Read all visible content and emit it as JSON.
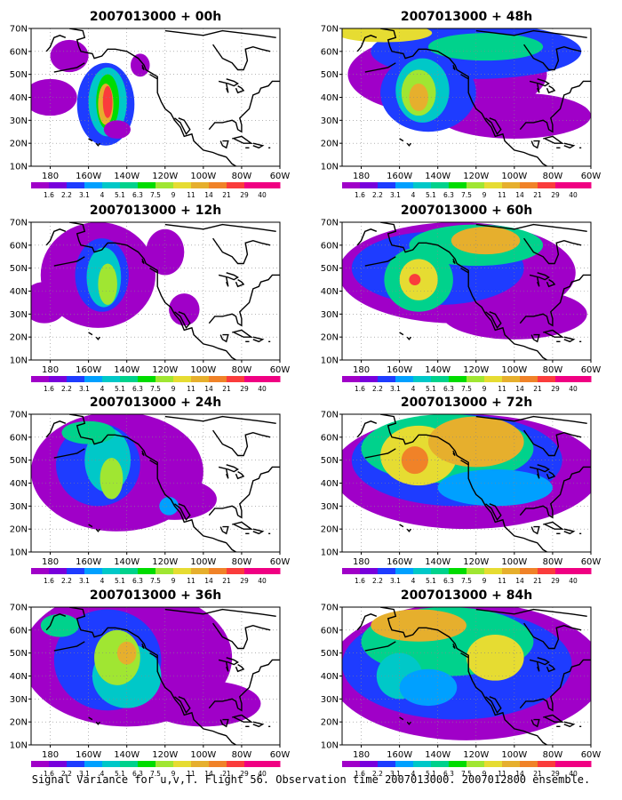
{
  "footer": "Signal Variance for u,v,T. Flight 56. Observation time 2007013000. 2007012800 ensemble.",
  "map": {
    "lat_ticks": [
      "70N",
      "60N",
      "50N",
      "40N",
      "30N",
      "20N",
      "10N"
    ],
    "lon_ticks": [
      "180",
      "160W",
      "140W",
      "120W",
      "100W",
      "80W",
      "60W"
    ],
    "lon_range": [
      -190,
      -60
    ],
    "lat_range": [
      10,
      70
    ]
  },
  "colorbar": {
    "labels": [
      "1.6",
      "2.2",
      "3.1",
      "4",
      "5.1",
      "6.3",
      "7.5",
      "9",
      "11",
      "14",
      "21",
      "29",
      "40"
    ],
    "colors": [
      "#a000c8",
      "#7800dc",
      "#1e3cff",
      "#00a0ff",
      "#00c8c8",
      "#00d28c",
      "#00dc00",
      "#a0e632",
      "#e6dc32",
      "#e6af2d",
      "#f08228",
      "#fa3c3c",
      "#f00082"
    ]
  },
  "panels": [
    {
      "id": "00h",
      "title": "2007013000 + 00h",
      "blobs": [
        {
          "lon": -151,
          "lat": 37,
          "rx": 15,
          "ry": 18,
          "level": 2
        },
        {
          "lon": -150,
          "lat": 38,
          "rx": 10,
          "ry": 15,
          "level": 4
        },
        {
          "lon": -150,
          "lat": 38,
          "rx": 6,
          "ry": 12,
          "level": 6
        },
        {
          "lon": -151,
          "lat": 37,
          "rx": 4,
          "ry": 9,
          "level": 9
        },
        {
          "lon": -150,
          "lat": 38,
          "rx": 2.5,
          "ry": 7,
          "level": 11
        },
        {
          "lon": -180,
          "lat": 40,
          "rx": 14,
          "ry": 8,
          "level": 0
        },
        {
          "lon": -170,
          "lat": 58,
          "rx": 10,
          "ry": 7,
          "level": 0
        },
        {
          "lon": -133,
          "lat": 54,
          "rx": 5,
          "ry": 5,
          "level": 0
        },
        {
          "lon": -145,
          "lat": 26,
          "rx": 7,
          "ry": 4,
          "level": 0
        }
      ]
    },
    {
      "id": "48h",
      "title": "2007013000 + 48h",
      "blobs": [
        {
          "lon": -135,
          "lat": 50,
          "rx": 52,
          "ry": 18,
          "level": 0
        },
        {
          "lon": -100,
          "lat": 32,
          "rx": 40,
          "ry": 10,
          "level": 0
        },
        {
          "lon": -145,
          "lat": 42,
          "rx": 25,
          "ry": 17,
          "level": 2
        },
        {
          "lon": -120,
          "lat": 60,
          "rx": 55,
          "ry": 12,
          "level": 2
        },
        {
          "lon": -148,
          "lat": 43,
          "rx": 14,
          "ry": 14,
          "level": 4
        },
        {
          "lon": -115,
          "lat": 62,
          "rx": 30,
          "ry": 6,
          "level": 5
        },
        {
          "lon": -150,
          "lat": 42,
          "rx": 9,
          "ry": 10,
          "level": 7
        },
        {
          "lon": -150,
          "lat": 40,
          "rx": 5,
          "ry": 6,
          "level": 9
        },
        {
          "lon": -168,
          "lat": 68,
          "rx": 25,
          "ry": 4,
          "level": 8
        }
      ]
    },
    {
      "id": "12h",
      "title": "2007013000 + 12h",
      "blobs": [
        {
          "lon": -155,
          "lat": 47,
          "rx": 30,
          "ry": 23,
          "level": 0
        },
        {
          "lon": -183,
          "lat": 35,
          "rx": 12,
          "ry": 9,
          "level": 0
        },
        {
          "lon": -120,
          "lat": 57,
          "rx": 10,
          "ry": 10,
          "level": 0
        },
        {
          "lon": -110,
          "lat": 32,
          "rx": 8,
          "ry": 7,
          "level": 0
        },
        {
          "lon": -153,
          "lat": 47,
          "rx": 14,
          "ry": 16,
          "level": 2
        },
        {
          "lon": -152,
          "lat": 46,
          "rx": 9,
          "ry": 13,
          "level": 4
        },
        {
          "lon": -150,
          "lat": 43,
          "rx": 5,
          "ry": 9,
          "level": 7
        }
      ]
    },
    {
      "id": "60h",
      "title": "2007013000 + 60h",
      "blobs": [
        {
          "lon": -130,
          "lat": 48,
          "rx": 62,
          "ry": 22,
          "level": 0
        },
        {
          "lon": -100,
          "lat": 30,
          "rx": 38,
          "ry": 11,
          "level": 0
        },
        {
          "lon": -140,
          "lat": 50,
          "rx": 45,
          "ry": 16,
          "level": 2
        },
        {
          "lon": -150,
          "lat": 45,
          "rx": 18,
          "ry": 14,
          "level": 5
        },
        {
          "lon": -120,
          "lat": 60,
          "rx": 35,
          "ry": 9,
          "level": 5
        },
        {
          "lon": -150,
          "lat": 45,
          "rx": 10,
          "ry": 9,
          "level": 8
        },
        {
          "lon": -115,
          "lat": 62,
          "rx": 18,
          "ry": 6,
          "level": 9
        },
        {
          "lon": -152,
          "lat": 45,
          "rx": 3,
          "ry": 2.5,
          "level": 11
        }
      ]
    },
    {
      "id": "24h",
      "title": "2007013000 + 24h",
      "blobs": [
        {
          "lon": -145,
          "lat": 45,
          "rx": 45,
          "ry": 26,
          "level": 0
        },
        {
          "lon": -115,
          "lat": 33,
          "rx": 22,
          "ry": 9,
          "level": 0
        },
        {
          "lon": -155,
          "lat": 48,
          "rx": 22,
          "ry": 18,
          "level": 2
        },
        {
          "lon": -150,
          "lat": 50,
          "rx": 12,
          "ry": 14,
          "level": 4
        },
        {
          "lon": -160,
          "lat": 62,
          "rx": 14,
          "ry": 5,
          "level": 5
        },
        {
          "lon": -148,
          "lat": 42,
          "rx": 6,
          "ry": 9,
          "level": 7
        },
        {
          "lon": -118,
          "lat": 30,
          "rx": 5,
          "ry": 4,
          "level": 3
        }
      ]
    },
    {
      "id": "72h",
      "title": "2007013000 + 72h",
      "blobs": [
        {
          "lon": -125,
          "lat": 45,
          "rx": 70,
          "ry": 25,
          "level": 0
        },
        {
          "lon": -130,
          "lat": 50,
          "rx": 55,
          "ry": 20,
          "level": 2
        },
        {
          "lon": -135,
          "lat": 55,
          "rx": 45,
          "ry": 15,
          "level": 5
        },
        {
          "lon": -150,
          "lat": 52,
          "rx": 20,
          "ry": 13,
          "level": 8
        },
        {
          "lon": -120,
          "lat": 58,
          "rx": 25,
          "ry": 11,
          "level": 9
        },
        {
          "lon": -152,
          "lat": 50,
          "rx": 7,
          "ry": 6,
          "level": 10
        },
        {
          "lon": -110,
          "lat": 38,
          "rx": 30,
          "ry": 8,
          "level": 3
        }
      ]
    },
    {
      "id": "36h",
      "title": "2007013000 + 36h",
      "blobs": [
        {
          "lon": -140,
          "lat": 48,
          "rx": 55,
          "ry": 30,
          "level": 0
        },
        {
          "lon": -100,
          "lat": 28,
          "rx": 30,
          "ry": 10,
          "level": 0
        },
        {
          "lon": -150,
          "lat": 47,
          "rx": 28,
          "ry": 22,
          "level": 2
        },
        {
          "lon": -140,
          "lat": 40,
          "rx": 18,
          "ry": 14,
          "level": 4
        },
        {
          "lon": -145,
          "lat": 48,
          "rx": 12,
          "ry": 12,
          "level": 7
        },
        {
          "lon": -140,
          "lat": 50,
          "rx": 5,
          "ry": 5,
          "level": 9
        },
        {
          "lon": -175,
          "lat": 62,
          "rx": 10,
          "ry": 5,
          "level": 5
        }
      ]
    },
    {
      "id": "84h",
      "title": "2007013000 + 84h",
      "blobs": [
        {
          "lon": -125,
          "lat": 42,
          "rx": 72,
          "ry": 30,
          "level": 0
        },
        {
          "lon": -130,
          "lat": 45,
          "rx": 60,
          "ry": 24,
          "level": 2
        },
        {
          "lon": -135,
          "lat": 55,
          "rx": 45,
          "ry": 15,
          "level": 5
        },
        {
          "lon": -150,
          "lat": 62,
          "rx": 25,
          "ry": 7,
          "level": 9
        },
        {
          "lon": -160,
          "lat": 40,
          "rx": 12,
          "ry": 10,
          "level": 4
        },
        {
          "lon": -110,
          "lat": 48,
          "rx": 15,
          "ry": 10,
          "level": 8
        },
        {
          "lon": -145,
          "lat": 35,
          "rx": 15,
          "ry": 8,
          "level": 3
        }
      ]
    }
  ]
}
